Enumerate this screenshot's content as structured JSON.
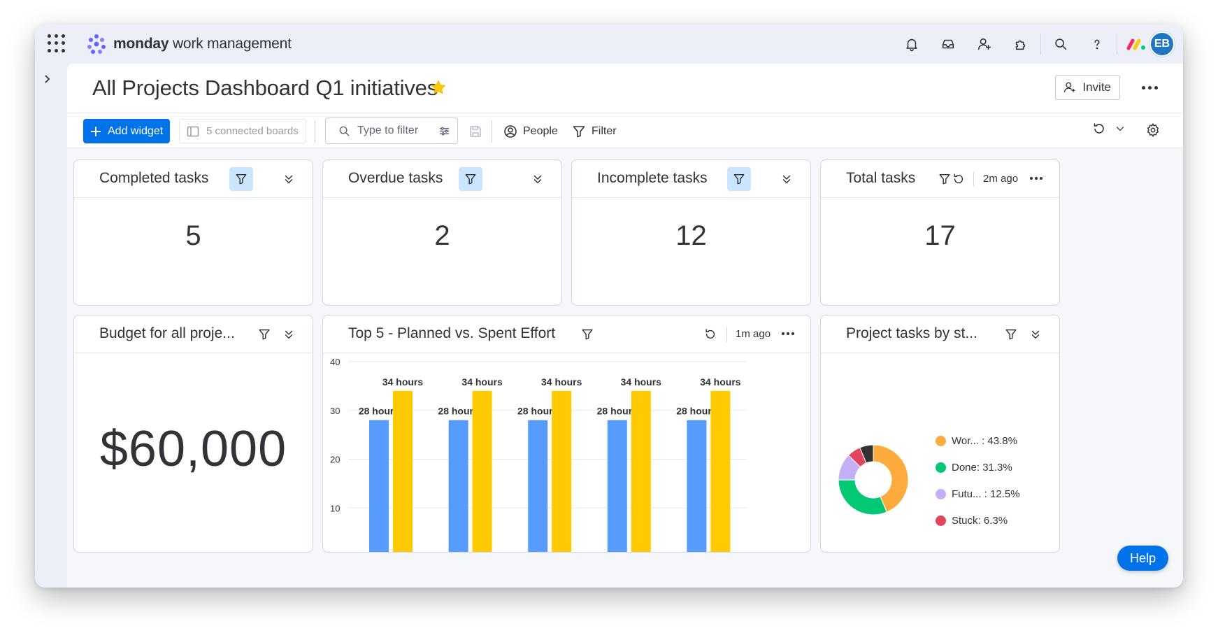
{
  "app": {
    "brand": "monday",
    "product": "work management",
    "avatar_initials": "EB",
    "icons": [
      "apps-grid-icon",
      "notifications-icon",
      "inbox-icon",
      "invite-members-icon",
      "integrations-icon",
      "search-icon",
      "help-icon"
    ]
  },
  "page": {
    "title": "All Projects Dashboard Q1 initiatives",
    "favorited": true,
    "invite_label": "Invite"
  },
  "toolbar": {
    "add_widget_label": "Add widget",
    "connected_boards_label": "5 connected boards",
    "filter_placeholder": "Type to filter",
    "people_label": "People",
    "filter_label": "Filter"
  },
  "widgets": {
    "completed": {
      "title": "Completed tasks",
      "value": "5"
    },
    "overdue": {
      "title": "Overdue tasks",
      "value": "2"
    },
    "incomplete": {
      "title": "Incomplete tasks",
      "value": "12"
    },
    "total": {
      "title": "Total tasks",
      "value": "17",
      "updated": "2m ago"
    },
    "budget": {
      "title": "Budget for all proje...",
      "value": "$60,000"
    },
    "effort": {
      "title": "Top 5 - Planned vs. Spent Effort",
      "updated": "1m ago"
    },
    "status": {
      "title": "Project tasks by st..."
    }
  },
  "chart_data": [
    {
      "type": "bar",
      "title": "Top 5 - Planned vs. Spent Effort",
      "categories": [
        "",
        "",
        "",
        "",
        ""
      ],
      "series": [
        {
          "values": [
            28,
            28,
            28,
            28,
            28
          ],
          "labels": [
            "28 hours",
            "28 hours",
            "28 hours",
            "28 hours",
            "28 hours"
          ],
          "color": "#579bfc"
        },
        {
          "values": [
            34,
            34,
            34,
            34,
            34
          ],
          "labels": [
            "34 hours",
            "34 hours",
            "34 hours",
            "34 hours",
            "34 hours"
          ],
          "color": "#ffcb00"
        }
      ],
      "yticks": [
        10,
        20,
        30,
        40
      ],
      "ylim": [
        0,
        40
      ],
      "grid": true
    },
    {
      "type": "pie",
      "title": "Project tasks by st...",
      "slices": [
        {
          "label": "Wor... : 43.8%",
          "value": 43.8,
          "color": "#fdab3d"
        },
        {
          "label": "Done: 31.3%",
          "value": 31.3,
          "color": "#00c875"
        },
        {
          "label": "Futu... : 12.5%",
          "value": 12.5,
          "color": "#c4b0f8"
        },
        {
          "label": "Stuck: 6.3%",
          "value": 6.3,
          "color": "#e2445c"
        },
        {
          "label": "",
          "value": 6.3,
          "color": "#333333"
        }
      ],
      "donut": true,
      "legend_position": "right"
    }
  ],
  "help_label": "Help",
  "colors": {
    "accent": "#0073ea",
    "filter_chip": "#cce5ff",
    "star": "#ffcb00"
  }
}
